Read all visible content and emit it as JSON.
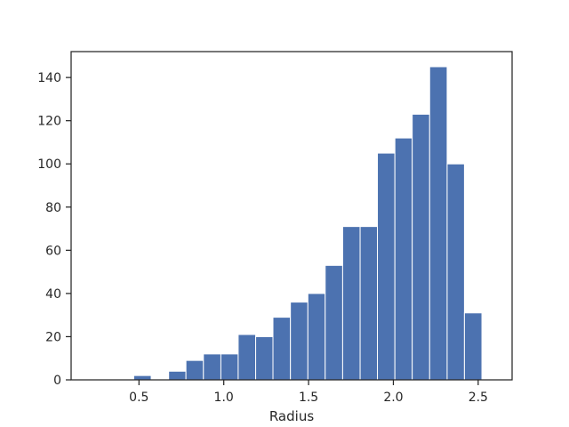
{
  "chart_data": {
    "type": "bar",
    "subtype": "histogram",
    "title": "",
    "xlabel": "Radius",
    "ylabel": "",
    "xlim": [
      0.1,
      2.7
    ],
    "ylim": [
      0,
      152
    ],
    "grid": false,
    "bar_color": "#4c72b0",
    "xticks": [
      0.5,
      1.0,
      1.5,
      2.0,
      2.5
    ],
    "xtick_labels": [
      "0.5",
      "1.0",
      "1.5",
      "2.0",
      "2.5"
    ],
    "yticks": [
      0,
      20,
      40,
      60,
      80,
      100,
      120,
      140
    ],
    "ytick_labels": [
      "0",
      "20",
      "40",
      "60",
      "80",
      "100",
      "120",
      "140"
    ],
    "bins": [
      {
        "start": 0.162,
        "end": 0.264,
        "count": 0
      },
      {
        "start": 0.264,
        "end": 0.367,
        "count": 0
      },
      {
        "start": 0.367,
        "end": 0.469,
        "count": 0
      },
      {
        "start": 0.469,
        "end": 0.572,
        "count": 2
      },
      {
        "start": 0.572,
        "end": 0.675,
        "count": 0
      },
      {
        "start": 0.675,
        "end": 0.777,
        "count": 4
      },
      {
        "start": 0.777,
        "end": 0.88,
        "count": 9
      },
      {
        "start": 0.88,
        "end": 0.983,
        "count": 12
      },
      {
        "start": 0.983,
        "end": 1.085,
        "count": 12
      },
      {
        "start": 1.085,
        "end": 1.188,
        "count": 21
      },
      {
        "start": 1.188,
        "end": 1.29,
        "count": 20
      },
      {
        "start": 1.29,
        "end": 1.393,
        "count": 29
      },
      {
        "start": 1.393,
        "end": 1.496,
        "count": 36
      },
      {
        "start": 1.496,
        "end": 1.598,
        "count": 40
      },
      {
        "start": 1.598,
        "end": 1.701,
        "count": 53
      },
      {
        "start": 1.701,
        "end": 1.804,
        "count": 71
      },
      {
        "start": 1.804,
        "end": 1.906,
        "count": 71
      },
      {
        "start": 1.906,
        "end": 2.009,
        "count": 105
      },
      {
        "start": 2.009,
        "end": 2.111,
        "count": 112
      },
      {
        "start": 2.111,
        "end": 2.214,
        "count": 123
      },
      {
        "start": 2.214,
        "end": 2.317,
        "count": 145
      },
      {
        "start": 2.317,
        "end": 2.419,
        "count": 100
      },
      {
        "start": 2.419,
        "end": 2.522,
        "count": 31
      }
    ]
  }
}
